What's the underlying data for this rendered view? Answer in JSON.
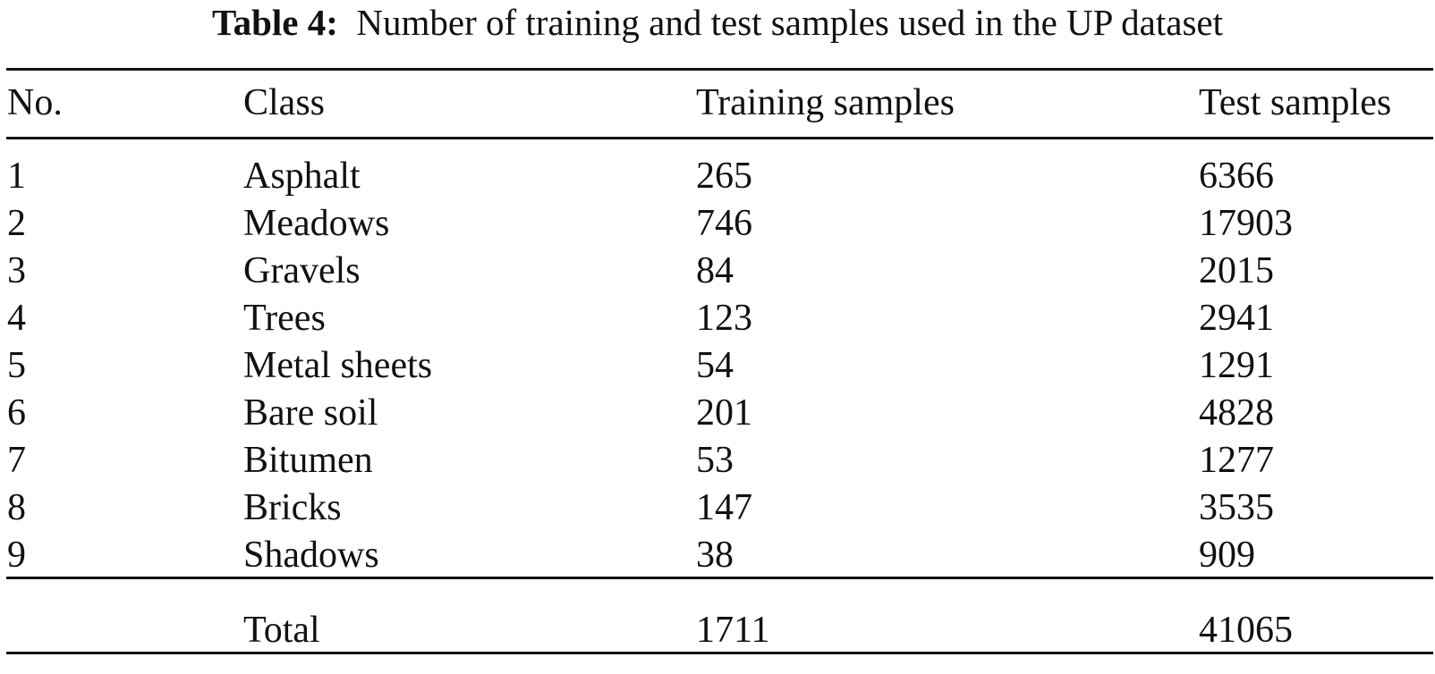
{
  "caption": {
    "label": "Table 4:",
    "text": "Number of training and test samples used in the UP dataset"
  },
  "table": {
    "headers": [
      "No.",
      "Class",
      "Training samples",
      "Test samples"
    ],
    "rows": [
      {
        "no": "1",
        "class": "Asphalt",
        "training": "265",
        "test": "6366"
      },
      {
        "no": "2",
        "class": "Meadows",
        "training": "746",
        "test": "17903"
      },
      {
        "no": "3",
        "class": "Gravels",
        "training": "84",
        "test": "2015"
      },
      {
        "no": "4",
        "class": "Trees",
        "training": "123",
        "test": "2941"
      },
      {
        "no": "5",
        "class": "Metal sheets",
        "training": "54",
        "test": "1291"
      },
      {
        "no": "6",
        "class": "Bare soil",
        "training": "201",
        "test": "4828"
      },
      {
        "no": "7",
        "class": "Bitumen",
        "training": "53",
        "test": "1277"
      },
      {
        "no": "8",
        "class": "Bricks",
        "training": "147",
        "test": "3535"
      },
      {
        "no": "9",
        "class": "Shadows",
        "training": "38",
        "test": "909"
      }
    ],
    "total": {
      "label": "Total",
      "training": "1711",
      "test": "41065"
    }
  }
}
